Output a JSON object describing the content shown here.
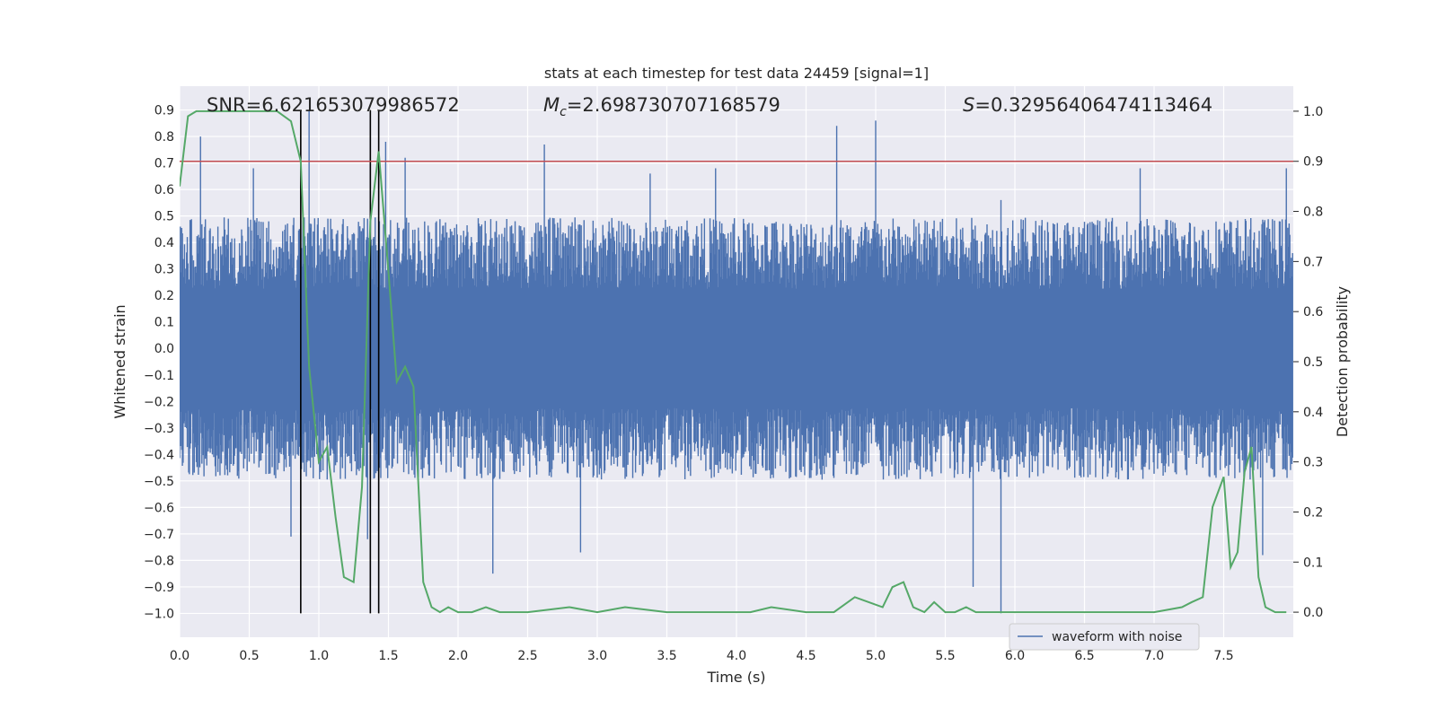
{
  "chart_data": {
    "type": "line",
    "title": "stats at each timestep for test data 24459 [signal=1]",
    "xlabel": "Time (s)",
    "ylabel_left": "Whitened strain",
    "ylabel_right": "Detection probability",
    "xlim": [
      0.0,
      8.0
    ],
    "ylim_left": [
      -1.09,
      0.99
    ],
    "ylim_right": [
      -0.05,
      1.05
    ],
    "x_ticks": [
      0.0,
      0.5,
      1.0,
      1.5,
      2.0,
      2.5,
      3.0,
      3.5,
      4.0,
      4.5,
      5.0,
      5.5,
      6.0,
      6.5,
      7.0,
      7.5
    ],
    "x_tick_labels": [
      "0.0",
      "0.5",
      "1.0",
      "1.5",
      "2.0",
      "2.5",
      "3.0",
      "3.5",
      "4.0",
      "4.5",
      "5.0",
      "5.5",
      "6.0",
      "6.5",
      "7.0",
      "7.5"
    ],
    "y_ticks_left": [
      0.9,
      0.8,
      0.7,
      0.6,
      0.5,
      0.4,
      0.3,
      0.2,
      0.1,
      0.0,
      -0.1,
      -0.2,
      -0.3,
      -0.4,
      -0.5,
      -0.6,
      -0.7,
      -0.8,
      -0.9,
      -1.0
    ],
    "y_tick_labels_left": [
      "0.9",
      "0.8",
      "0.7",
      "0.6",
      "0.5",
      "0.4",
      "0.3",
      "0.2",
      "0.1",
      "0.0",
      "−0.1",
      "−0.2",
      "−0.3",
      "−0.4",
      "−0.5",
      "−0.6",
      "−0.7",
      "−0.8",
      "−0.9",
      "−1.0"
    ],
    "y_ticks_right": [
      1.0,
      0.9,
      0.8,
      0.7,
      0.6,
      0.5,
      0.4,
      0.3,
      0.2,
      0.1,
      0.0
    ],
    "y_tick_labels_right": [
      "1.0",
      "0.9",
      "0.8",
      "0.7",
      "0.6",
      "0.5",
      "0.4",
      "0.3",
      "0.2",
      "0.1",
      "0.0"
    ],
    "annotations": {
      "snr": "SNR=6.621653079986572",
      "mc_symbol": "M",
      "mc_subscript": "c",
      "mc_value": "=2.698730707168579",
      "s_symbol": "S",
      "s_value": "=0.32956406474113464"
    },
    "legend": {
      "label": "waveform with noise",
      "location": "lower-right"
    },
    "threshold": {
      "value": 0.9,
      "axis": "right",
      "color": "#c44e52"
    },
    "vertical_markers": [
      0.87,
      1.37,
      1.43
    ],
    "waveform": {
      "name": "waveform with noise",
      "color": "#4c72b0",
      "t_start": 0.0,
      "t_end": 8.0,
      "samples": 1600,
      "typical_amplitude": 0.3,
      "spikes": [
        {
          "t": 0.15,
          "v": 0.8
        },
        {
          "t": 0.53,
          "v": 0.68
        },
        {
          "t": 0.93,
          "v": 0.9
        },
        {
          "t": 0.8,
          "v": -0.71
        },
        {
          "t": 1.35,
          "v": -0.72
        },
        {
          "t": 1.48,
          "v": 0.78
        },
        {
          "t": 1.62,
          "v": 0.72
        },
        {
          "t": 2.25,
          "v": -0.85
        },
        {
          "t": 2.62,
          "v": 0.77
        },
        {
          "t": 2.88,
          "v": -0.77
        },
        {
          "t": 3.85,
          "v": 0.68
        },
        {
          "t": 4.72,
          "v": 0.84
        },
        {
          "t": 5.0,
          "v": 0.86
        },
        {
          "t": 5.7,
          "v": -0.9
        },
        {
          "t": 5.9,
          "v": -1.0
        },
        {
          "t": 5.9,
          "v": 0.56
        },
        {
          "t": 7.78,
          "v": -0.78
        },
        {
          "t": 7.95,
          "v": 0.68
        },
        {
          "t": 3.38,
          "v": 0.66
        },
        {
          "t": 6.9,
          "v": 0.68
        }
      ]
    },
    "detection_probability": {
      "name": "detection probability",
      "color": "#55a868",
      "x": [
        0.0,
        0.06,
        0.12,
        0.2,
        0.3,
        0.4,
        0.5,
        0.6,
        0.7,
        0.8,
        0.87,
        0.93,
        1.0,
        1.06,
        1.12,
        1.18,
        1.25,
        1.31,
        1.37,
        1.43,
        1.5,
        1.56,
        1.62,
        1.68,
        1.75,
        1.81,
        1.87,
        1.93,
        2.0,
        2.1,
        2.2,
        2.3,
        2.5,
        2.8,
        3.0,
        3.2,
        3.5,
        3.8,
        4.1,
        4.25,
        4.5,
        4.7,
        4.85,
        4.95,
        5.05,
        5.12,
        5.2,
        5.27,
        5.35,
        5.42,
        5.5,
        5.57,
        5.65,
        5.72,
        5.8,
        6.0,
        6.5,
        7.0,
        7.2,
        7.27,
        7.35,
        7.42,
        7.5,
        7.55,
        7.6,
        7.65,
        7.7,
        7.75,
        7.8,
        7.87,
        7.95
      ],
      "y": [
        0.85,
        0.99,
        1.0,
        1.0,
        1.0,
        1.0,
        1.0,
        1.0,
        1.0,
        0.98,
        0.9,
        0.49,
        0.3,
        0.33,
        0.19,
        0.07,
        0.06,
        0.25,
        0.78,
        0.92,
        0.68,
        0.46,
        0.49,
        0.45,
        0.06,
        0.01,
        0.0,
        0.01,
        0.0,
        0.0,
        0.01,
        0.0,
        0.0,
        0.01,
        0.0,
        0.01,
        0.0,
        0.0,
        0.0,
        0.01,
        0.0,
        0.0,
        0.03,
        0.02,
        0.01,
        0.05,
        0.06,
        0.01,
        0.0,
        0.02,
        0.0,
        0.0,
        0.01,
        0.0,
        0.0,
        0.0,
        0.0,
        0.0,
        0.01,
        0.02,
        0.03,
        0.21,
        0.27,
        0.09,
        0.12,
        0.28,
        0.33,
        0.07,
        0.01,
        0.0,
        0.0
      ]
    }
  }
}
